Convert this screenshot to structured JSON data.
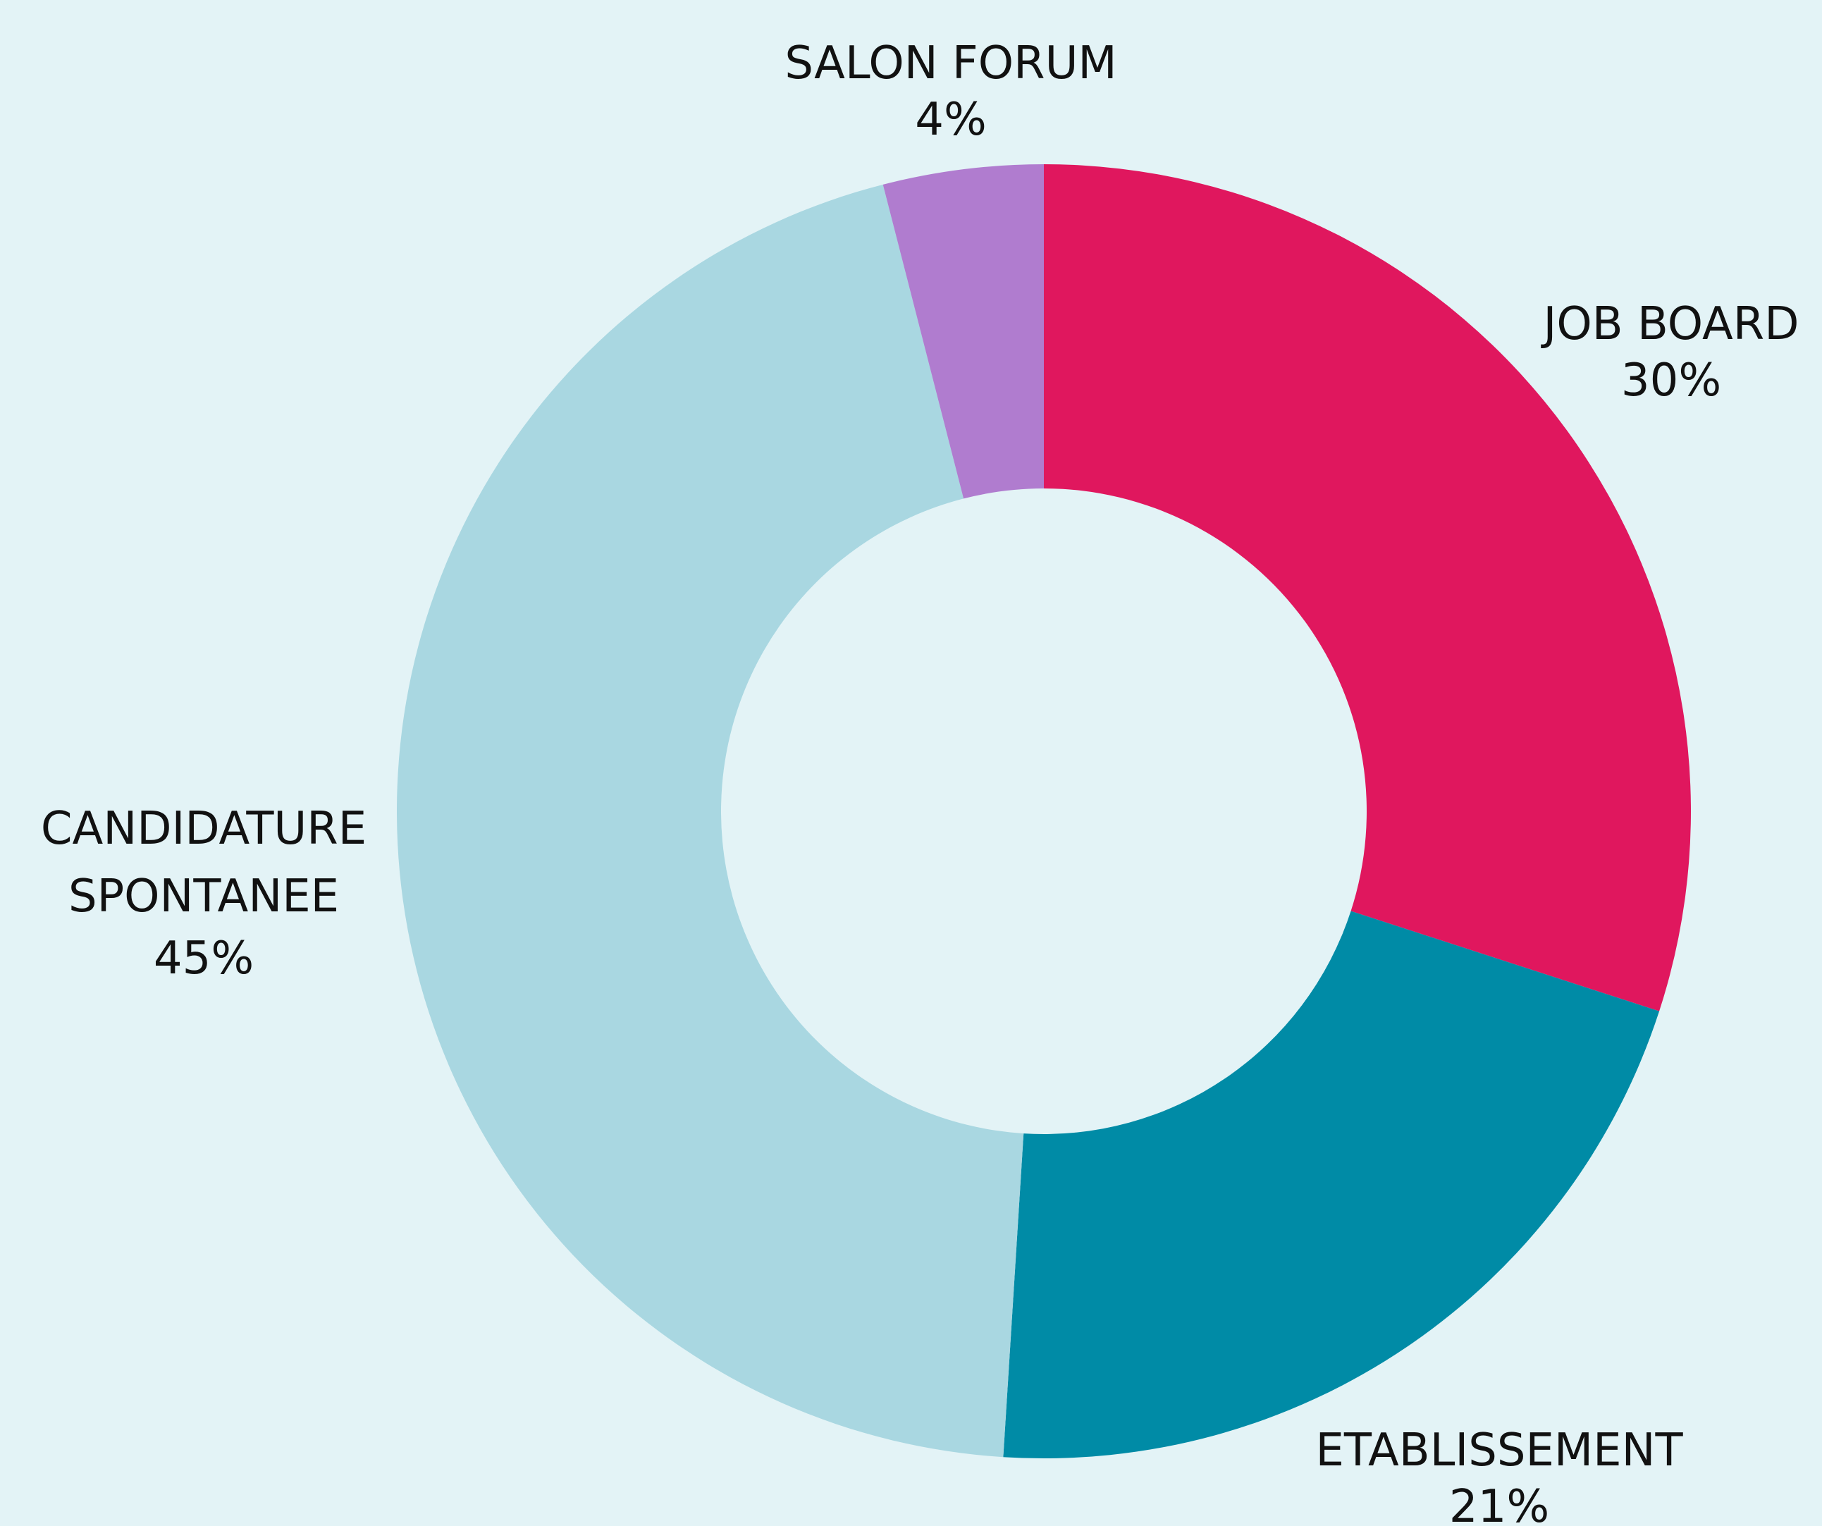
{
  "chart_data": {
    "type": "donut",
    "categories": [
      "JOB BOARD",
      "ETABLISSEMENT",
      "CANDIDATURE SPONTANEE",
      "SALON FORUM"
    ],
    "values": [
      30,
      21,
      45,
      4
    ],
    "value_labels": [
      "30%",
      "21%",
      "45%",
      "4%"
    ],
    "colors": [
      "#e0175e",
      "#008ba6",
      "#a9d7e1",
      "#b07ccf"
    ]
  }
}
